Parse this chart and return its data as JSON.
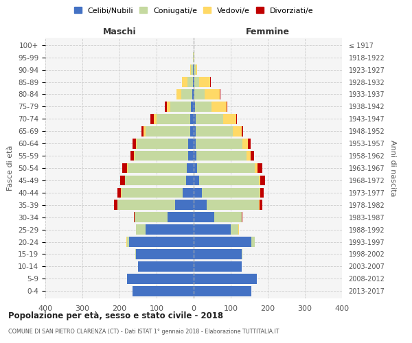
{
  "age_groups": [
    "0-4",
    "5-9",
    "10-14",
    "15-19",
    "20-24",
    "25-29",
    "30-34",
    "35-39",
    "40-44",
    "45-49",
    "50-54",
    "55-59",
    "60-64",
    "65-69",
    "70-74",
    "75-79",
    "80-84",
    "85-89",
    "90-94",
    "95-99",
    "100+"
  ],
  "birth_years": [
    "2013-2017",
    "2008-2012",
    "2003-2007",
    "1998-2002",
    "1993-1997",
    "1988-1992",
    "1983-1987",
    "1978-1982",
    "1973-1977",
    "1968-1972",
    "1963-1967",
    "1958-1962",
    "1953-1957",
    "1948-1952",
    "1943-1947",
    "1938-1942",
    "1933-1937",
    "1928-1932",
    "1923-1927",
    "1918-1922",
    "≤ 1917"
  ],
  "maschi": {
    "celibi": [
      165,
      180,
      150,
      155,
      175,
      130,
      70,
      50,
      30,
      20,
      18,
      14,
      14,
      10,
      10,
      8,
      4,
      2,
      2,
      0,
      0
    ],
    "coniugati": [
      0,
      0,
      0,
      2,
      5,
      25,
      90,
      155,
      165,
      165,
      160,
      145,
      140,
      120,
      90,
      55,
      30,
      15,
      5,
      1,
      0
    ],
    "vedovi": [
      0,
      0,
      0,
      0,
      1,
      0,
      0,
      1,
      1,
      1,
      2,
      2,
      2,
      5,
      8,
      10,
      12,
      15,
      3,
      1,
      0
    ],
    "divorziati": [
      0,
      0,
      0,
      0,
      0,
      0,
      2,
      8,
      10,
      12,
      12,
      10,
      8,
      5,
      8,
      4,
      0,
      0,
      0,
      0,
      0
    ]
  },
  "femmine": {
    "nubili": [
      155,
      170,
      130,
      130,
      155,
      100,
      55,
      35,
      22,
      15,
      10,
      8,
      6,
      5,
      5,
      4,
      2,
      2,
      0,
      0,
      0
    ],
    "coniugate": [
      0,
      0,
      0,
      2,
      10,
      20,
      75,
      140,
      155,
      160,
      155,
      135,
      125,
      100,
      75,
      45,
      28,
      12,
      5,
      0,
      0
    ],
    "vedove": [
      0,
      0,
      0,
      0,
      0,
      2,
      0,
      2,
      2,
      5,
      8,
      10,
      15,
      25,
      35,
      40,
      40,
      30,
      5,
      2,
      0
    ],
    "divorziate": [
      0,
      0,
      0,
      0,
      0,
      0,
      2,
      8,
      10,
      12,
      12,
      10,
      8,
      3,
      2,
      2,
      2,
      2,
      0,
      0,
      0
    ]
  },
  "colors": {
    "celibi_nubili": "#4472C4",
    "coniugati": "#C5D9A0",
    "vedovi": "#FFD966",
    "divorziati": "#C00000"
  },
  "xlim": 400,
  "title1": "Popolazione per età, sesso e stato civile - 2018",
  "title2": "COMUNE DI SAN PIETRO CLARENZA (CT) - Dati ISTAT 1° gennaio 2018 - Elaborazione TUTTITALIA.IT",
  "ylabel_left": "Fasce di età",
  "ylabel_right": "Anni di nascita",
  "xlabel_maschi": "Maschi",
  "xlabel_femmine": "Femmine",
  "legend_labels": [
    "Celibi/Nubili",
    "Coniugati/e",
    "Vedovi/e",
    "Divorziati/e"
  ]
}
